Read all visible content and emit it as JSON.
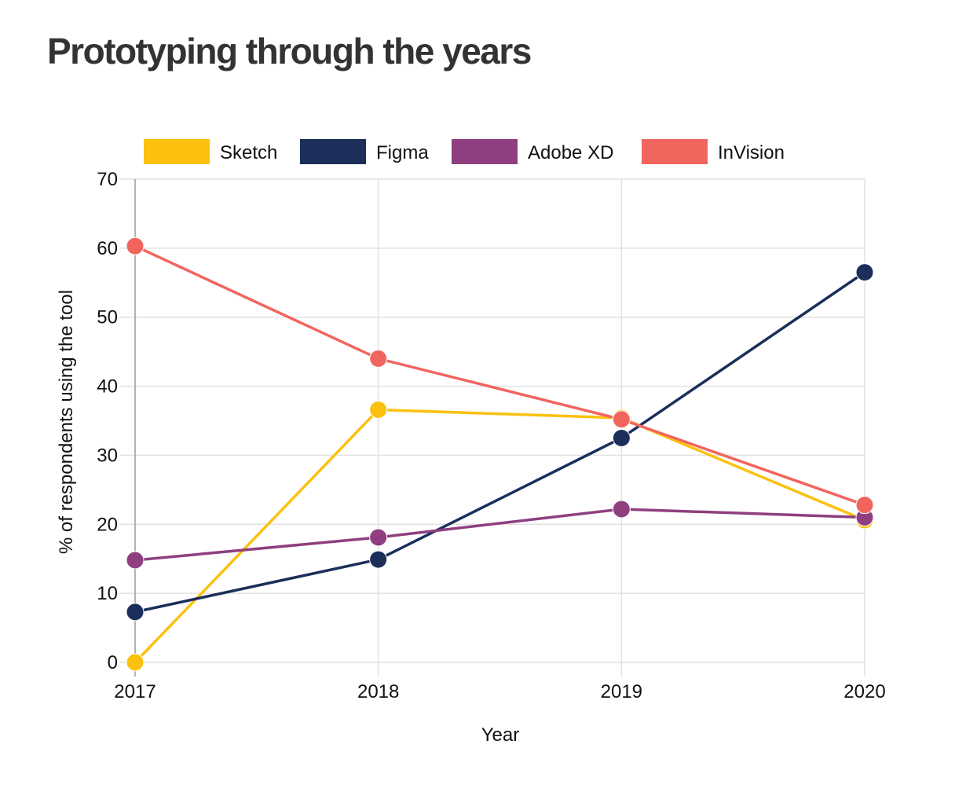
{
  "page": {
    "title": "Prototyping through the years"
  },
  "chart_data": {
    "type": "line",
    "title": "Prototyping through the years",
    "xlabel": "Year",
    "ylabel": "% of respondents using the tool",
    "categories": [
      "2017",
      "2018",
      "2019",
      "2020"
    ],
    "ylim": [
      0,
      70
    ],
    "yticks": [
      0,
      10,
      20,
      30,
      40,
      50,
      60,
      70
    ],
    "grid": true,
    "legend_position": "top",
    "series": [
      {
        "name": "Sketch",
        "color": "#fcc10f",
        "values": [
          0,
          36.6,
          35.4,
          20.6
        ]
      },
      {
        "name": "Figma",
        "color": "#1b2f5a",
        "values": [
          7.3,
          14.9,
          32.5,
          56.5
        ]
      },
      {
        "name": "Adobe XD",
        "color": "#8f3f80",
        "values": [
          14.8,
          18.1,
          22.2,
          21.0
        ]
      },
      {
        "name": "InVision",
        "color": "#f2655f",
        "values": [
          60.3,
          44.0,
          35.2,
          22.8
        ]
      }
    ]
  }
}
